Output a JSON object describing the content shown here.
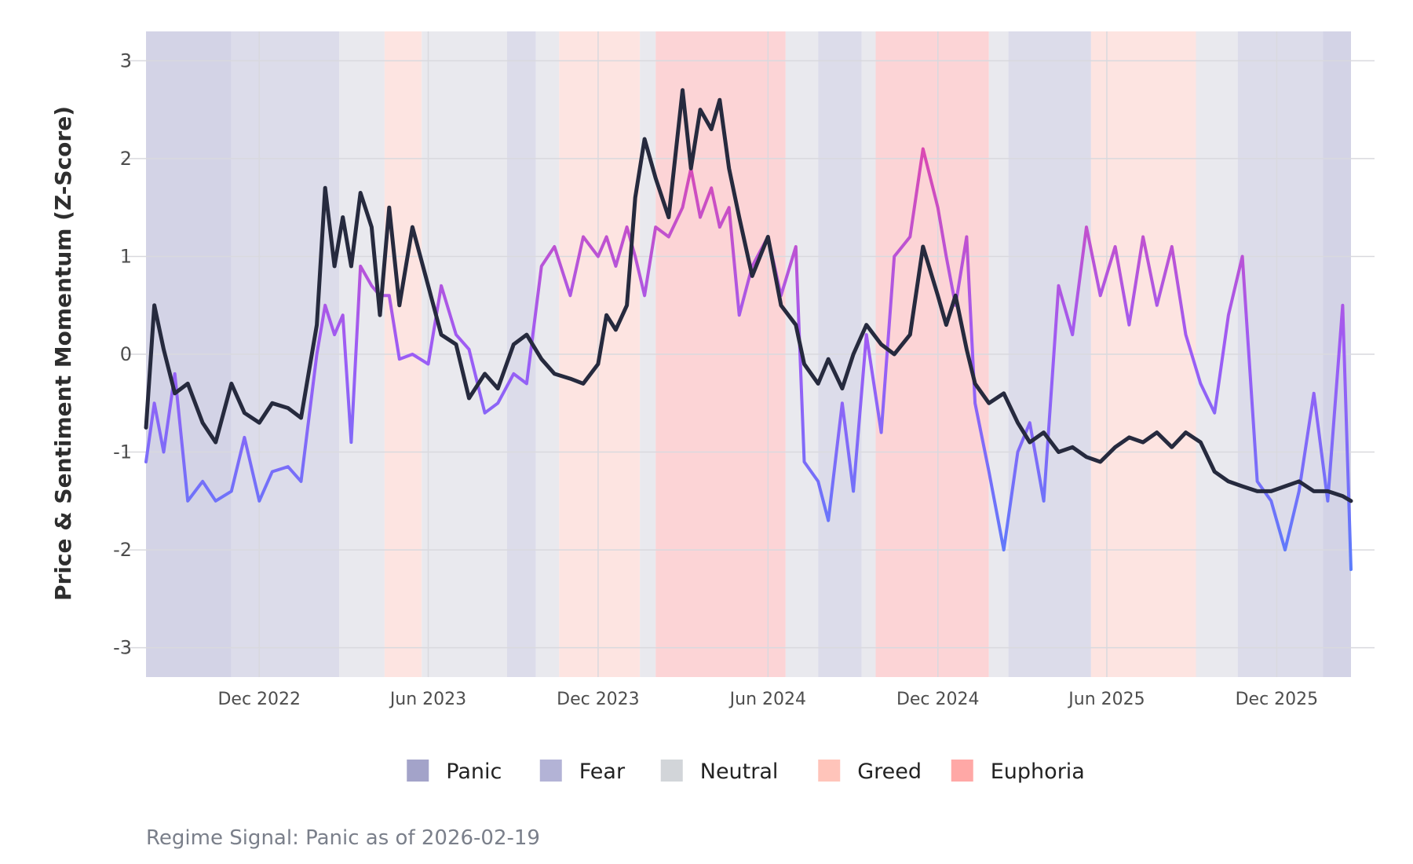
{
  "chart_data": {
    "type": "line",
    "title": "",
    "ylabel": "Price & Sentiment Momentum (Z-Score)",
    "xlabel": "",
    "ylim": [
      -3.3,
      3.3
    ],
    "xlim": [
      "2022-08-01",
      "2026-02-19"
    ],
    "yticks": [
      -3,
      -2,
      -1,
      0,
      1,
      2,
      3
    ],
    "xticks": [
      {
        "date": "2022-12-01",
        "label": "Dec 2022"
      },
      {
        "date": "2023-06-01",
        "label": "Jun 2023"
      },
      {
        "date": "2023-12-01",
        "label": "Dec 2023"
      },
      {
        "date": "2024-06-01",
        "label": "Jun 2024"
      },
      {
        "date": "2024-12-01",
        "label": "Dec 2024"
      },
      {
        "date": "2025-06-01",
        "label": "Jun 2025"
      },
      {
        "date": "2025-12-01",
        "label": "Dec 2025"
      }
    ],
    "grid": true,
    "legend_position": "bottom",
    "legend": [
      {
        "label": "Panic",
        "color": "#a3a3c9"
      },
      {
        "label": "Fear",
        "color": "#b3b3d6"
      },
      {
        "label": "Neutral",
        "color": "#d2d5d9"
      },
      {
        "label": "Greed",
        "color": "#ffc4ba"
      },
      {
        "label": "Euphoria",
        "color": "#ffa8a6"
      }
    ],
    "regime_colors": {
      "Panic": "#d3d3e6",
      "Fear": "#dcdcea",
      "Neutral": "#e9e9ee",
      "Greed": "#fde4e1",
      "Euphoria": "#fcd4d6"
    },
    "regimes": [
      {
        "start": "2022-08-01",
        "end": "2022-11-01",
        "regime": "Panic"
      },
      {
        "start": "2022-11-01",
        "end": "2023-02-25",
        "regime": "Fear"
      },
      {
        "start": "2023-02-25",
        "end": "2023-04-15",
        "regime": "Neutral"
      },
      {
        "start": "2023-04-15",
        "end": "2023-05-25",
        "regime": "Greed"
      },
      {
        "start": "2023-05-25",
        "end": "2023-08-25",
        "regime": "Neutral"
      },
      {
        "start": "2023-08-25",
        "end": "2023-09-25",
        "regime": "Fear"
      },
      {
        "start": "2023-09-25",
        "end": "2023-10-20",
        "regime": "Neutral"
      },
      {
        "start": "2023-10-20",
        "end": "2024-01-15",
        "regime": "Greed"
      },
      {
        "start": "2024-01-15",
        "end": "2024-02-01",
        "regime": "Neutral"
      },
      {
        "start": "2024-02-01",
        "end": "2024-06-20",
        "regime": "Euphoria"
      },
      {
        "start": "2024-06-20",
        "end": "2024-07-25",
        "regime": "Neutral"
      },
      {
        "start": "2024-07-25",
        "end": "2024-09-10",
        "regime": "Fear"
      },
      {
        "start": "2024-09-10",
        "end": "2024-09-25",
        "regime": "Neutral"
      },
      {
        "start": "2024-09-25",
        "end": "2025-01-25",
        "regime": "Euphoria"
      },
      {
        "start": "2025-01-25",
        "end": "2025-02-15",
        "regime": "Neutral"
      },
      {
        "start": "2025-02-15",
        "end": "2025-05-15",
        "regime": "Fear"
      },
      {
        "start": "2025-05-15",
        "end": "2025-09-05",
        "regime": "Greed"
      },
      {
        "start": "2025-09-05",
        "end": "2025-10-20",
        "regime": "Neutral"
      },
      {
        "start": "2025-10-20",
        "end": "2026-01-20",
        "regime": "Fear"
      },
      {
        "start": "2026-01-20",
        "end": "2026-02-19",
        "regime": "Panic"
      }
    ],
    "series": [
      {
        "color": "#262a3e",
        "x": [
          "2022-08-01",
          "2022-08-10",
          "2022-08-20",
          "2022-09-01",
          "2022-09-15",
          "2022-10-01",
          "2022-10-15",
          "2022-11-01",
          "2022-11-15",
          "2022-12-01",
          "2022-12-15",
          "2023-01-01",
          "2023-01-15",
          "2023-02-01",
          "2023-02-10",
          "2023-02-20",
          "2023-03-01",
          "2023-03-10",
          "2023-03-20",
          "2023-04-01",
          "2023-04-10",
          "2023-04-20",
          "2023-05-01",
          "2023-05-15",
          "2023-06-01",
          "2023-06-15",
          "2023-07-01",
          "2023-07-15",
          "2023-08-01",
          "2023-08-15",
          "2023-09-01",
          "2023-09-15",
          "2023-10-01",
          "2023-10-15",
          "2023-11-01",
          "2023-11-15",
          "2023-12-01",
          "2023-12-10",
          "2023-12-20",
          "2024-01-01",
          "2024-01-10",
          "2024-01-20",
          "2024-02-01",
          "2024-02-15",
          "2024-03-01",
          "2024-03-10",
          "2024-03-20",
          "2024-04-01",
          "2024-04-10",
          "2024-04-20",
          "2024-05-01",
          "2024-05-15",
          "2024-06-01",
          "2024-06-15",
          "2024-07-01",
          "2024-07-10",
          "2024-07-25",
          "2024-08-05",
          "2024-08-20",
          "2024-09-01",
          "2024-09-15",
          "2024-10-01",
          "2024-10-15",
          "2024-11-01",
          "2024-11-15",
          "2024-12-01",
          "2024-12-10",
          "2024-12-20",
          "2025-01-01",
          "2025-01-10",
          "2025-01-25",
          "2025-02-10",
          "2025-02-25",
          "2025-03-10",
          "2025-03-25",
          "2025-04-10",
          "2025-04-25",
          "2025-05-10",
          "2025-05-25",
          "2025-06-10",
          "2025-06-25",
          "2025-07-10",
          "2025-07-25",
          "2025-08-10",
          "2025-08-25",
          "2025-09-10",
          "2025-09-25",
          "2025-10-10",
          "2025-10-25",
          "2025-11-10",
          "2025-11-25",
          "2025-12-10",
          "2025-12-25",
          "2026-01-10",
          "2026-01-25",
          "2026-02-10",
          "2026-02-19"
        ],
        "values": [
          -0.75,
          0.5,
          0.05,
          -0.4,
          -0.3,
          -0.7,
          -0.9,
          -0.3,
          -0.6,
          -0.7,
          -0.5,
          -0.55,
          -0.65,
          0.3,
          1.7,
          0.9,
          1.4,
          0.9,
          1.65,
          1.3,
          0.4,
          1.5,
          0.5,
          1.3,
          0.7,
          0.2,
          0.1,
          -0.45,
          -0.2,
          -0.35,
          0.1,
          0.2,
          -0.05,
          -0.2,
          -0.25,
          -0.3,
          -0.1,
          0.4,
          0.25,
          0.5,
          1.6,
          2.2,
          1.8,
          1.4,
          2.7,
          1.9,
          2.5,
          2.3,
          2.6,
          1.9,
          1.4,
          0.8,
          1.2,
          0.5,
          0.3,
          -0.1,
          -0.3,
          -0.05,
          -0.35,
          0.0,
          0.3,
          0.1,
          0.0,
          0.2,
          1.1,
          0.6,
          0.3,
          0.6,
          0.05,
          -0.3,
          -0.5,
          -0.4,
          -0.7,
          -0.9,
          -0.8,
          -1.0,
          -0.95,
          -1.05,
          -1.1,
          -0.95,
          -0.85,
          -0.9,
          -0.8,
          -0.95,
          -0.8,
          -0.9,
          -1.2,
          -1.3,
          -1.35,
          -1.4,
          -1.4,
          -1.35,
          -1.3,
          -1.4,
          -1.4,
          -1.45,
          -1.5
        ]
      },
      {
        "gradient": [
          "#3d8bff",
          "#9d5cf5",
          "#ff3e8a"
        ],
        "x": [
          "2022-08-01",
          "2022-08-10",
          "2022-08-20",
          "2022-09-01",
          "2022-09-15",
          "2022-10-01",
          "2022-10-15",
          "2022-11-01",
          "2022-11-15",
          "2022-12-01",
          "2022-12-15",
          "2023-01-01",
          "2023-01-15",
          "2023-02-01",
          "2023-02-10",
          "2023-02-20",
          "2023-03-01",
          "2023-03-10",
          "2023-03-20",
          "2023-04-01",
          "2023-04-10",
          "2023-04-20",
          "2023-05-01",
          "2023-05-15",
          "2023-06-01",
          "2023-06-15",
          "2023-07-01",
          "2023-07-15",
          "2023-08-01",
          "2023-08-15",
          "2023-09-01",
          "2023-09-15",
          "2023-10-01",
          "2023-10-15",
          "2023-11-01",
          "2023-11-15",
          "2023-12-01",
          "2023-12-10",
          "2023-12-20",
          "2024-01-01",
          "2024-01-10",
          "2024-01-20",
          "2024-02-01",
          "2024-02-15",
          "2024-03-01",
          "2024-03-10",
          "2024-03-20",
          "2024-04-01",
          "2024-04-10",
          "2024-04-20",
          "2024-05-01",
          "2024-05-15",
          "2024-06-01",
          "2024-06-15",
          "2024-07-01",
          "2024-07-10",
          "2024-07-25",
          "2024-08-05",
          "2024-08-20",
          "2024-09-01",
          "2024-09-15",
          "2024-10-01",
          "2024-10-15",
          "2024-11-01",
          "2024-11-15",
          "2024-12-01",
          "2024-12-10",
          "2024-12-20",
          "2025-01-01",
          "2025-01-10",
          "2025-01-25",
          "2025-02-10",
          "2025-02-25",
          "2025-03-10",
          "2025-03-25",
          "2025-04-10",
          "2025-04-25",
          "2025-05-10",
          "2025-05-25",
          "2025-06-10",
          "2025-06-25",
          "2025-07-10",
          "2025-07-25",
          "2025-08-10",
          "2025-08-25",
          "2025-09-10",
          "2025-09-25",
          "2025-10-10",
          "2025-10-25",
          "2025-11-10",
          "2025-11-25",
          "2025-12-10",
          "2025-12-25",
          "2026-01-10",
          "2026-01-25",
          "2026-02-10",
          "2026-02-19"
        ],
        "values": [
          -1.1,
          -0.5,
          -1.0,
          -0.2,
          -1.5,
          -1.3,
          -1.5,
          -1.4,
          -0.85,
          -1.5,
          -1.2,
          -1.15,
          -1.3,
          0.0,
          0.5,
          0.2,
          0.4,
          -0.9,
          0.9,
          0.7,
          0.6,
          0.6,
          -0.05,
          0.0,
          -0.1,
          0.7,
          0.2,
          0.05,
          -0.6,
          -0.5,
          -0.2,
          -0.3,
          0.9,
          1.1,
          0.6,
          1.2,
          1.0,
          1.2,
          0.9,
          1.3,
          1.0,
          0.6,
          1.3,
          1.2,
          1.5,
          1.9,
          1.4,
          1.7,
          1.3,
          1.5,
          0.4,
          0.9,
          1.2,
          0.6,
          1.1,
          -1.1,
          -1.3,
          -1.7,
          -0.5,
          -1.4,
          0.2,
          -0.8,
          1.0,
          1.2,
          2.1,
          1.5,
          1.0,
          0.5,
          1.2,
          -0.5,
          -1.2,
          -2.0,
          -1.0,
          -0.7,
          -1.5,
          0.7,
          0.2,
          1.3,
          0.6,
          1.1,
          0.3,
          1.2,
          0.5,
          1.1,
          0.2,
          -0.3,
          -0.6,
          0.4,
          1.0,
          -1.3,
          -1.5,
          -2.0,
          -1.4,
          -0.4,
          -1.5,
          0.5,
          -2.2
        ]
      }
    ]
  },
  "caption": "Regime Signal: Panic as of 2026-02-19"
}
